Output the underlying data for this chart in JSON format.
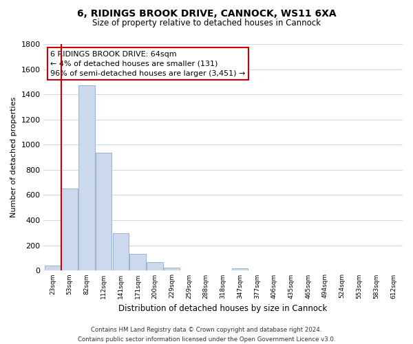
{
  "title": "6, RIDINGS BROOK DRIVE, CANNOCK, WS11 6XA",
  "subtitle": "Size of property relative to detached houses in Cannock",
  "xlabel": "Distribution of detached houses by size in Cannock",
  "ylabel": "Number of detached properties",
  "bar_color": "#ccd9ec",
  "bar_edge_color": "#9ab3d0",
  "vline_color": "#cc0000",
  "vline_x_idx": 0.5,
  "categories": [
    "23sqm",
    "53sqm",
    "82sqm",
    "112sqm",
    "141sqm",
    "171sqm",
    "200sqm",
    "229sqm",
    "259sqm",
    "288sqm",
    "318sqm",
    "347sqm",
    "377sqm",
    "406sqm",
    "435sqm",
    "465sqm",
    "494sqm",
    "524sqm",
    "553sqm",
    "583sqm",
    "612sqm"
  ],
  "values": [
    40,
    650,
    1470,
    935,
    295,
    130,
    65,
    25,
    0,
    0,
    0,
    15,
    0,
    0,
    0,
    0,
    0,
    0,
    0,
    0,
    0
  ],
  "ylim": [
    0,
    1800
  ],
  "yticks": [
    0,
    200,
    400,
    600,
    800,
    1000,
    1200,
    1400,
    1600,
    1800
  ],
  "annotation_title": "6 RIDINGS BROOK DRIVE: 64sqm",
  "annotation_line1": "← 4% of detached houses are smaller (131)",
  "annotation_line2": "96% of semi-detached houses are larger (3,451) →",
  "annotation_box_color": "#ffffff",
  "annotation_border_color": "#cc0000",
  "footer_line1": "Contains HM Land Registry data © Crown copyright and database right 2024.",
  "footer_line2": "Contains public sector information licensed under the Open Government Licence v3.0.",
  "background_color": "#ffffff",
  "grid_color": "#cdd8ea"
}
